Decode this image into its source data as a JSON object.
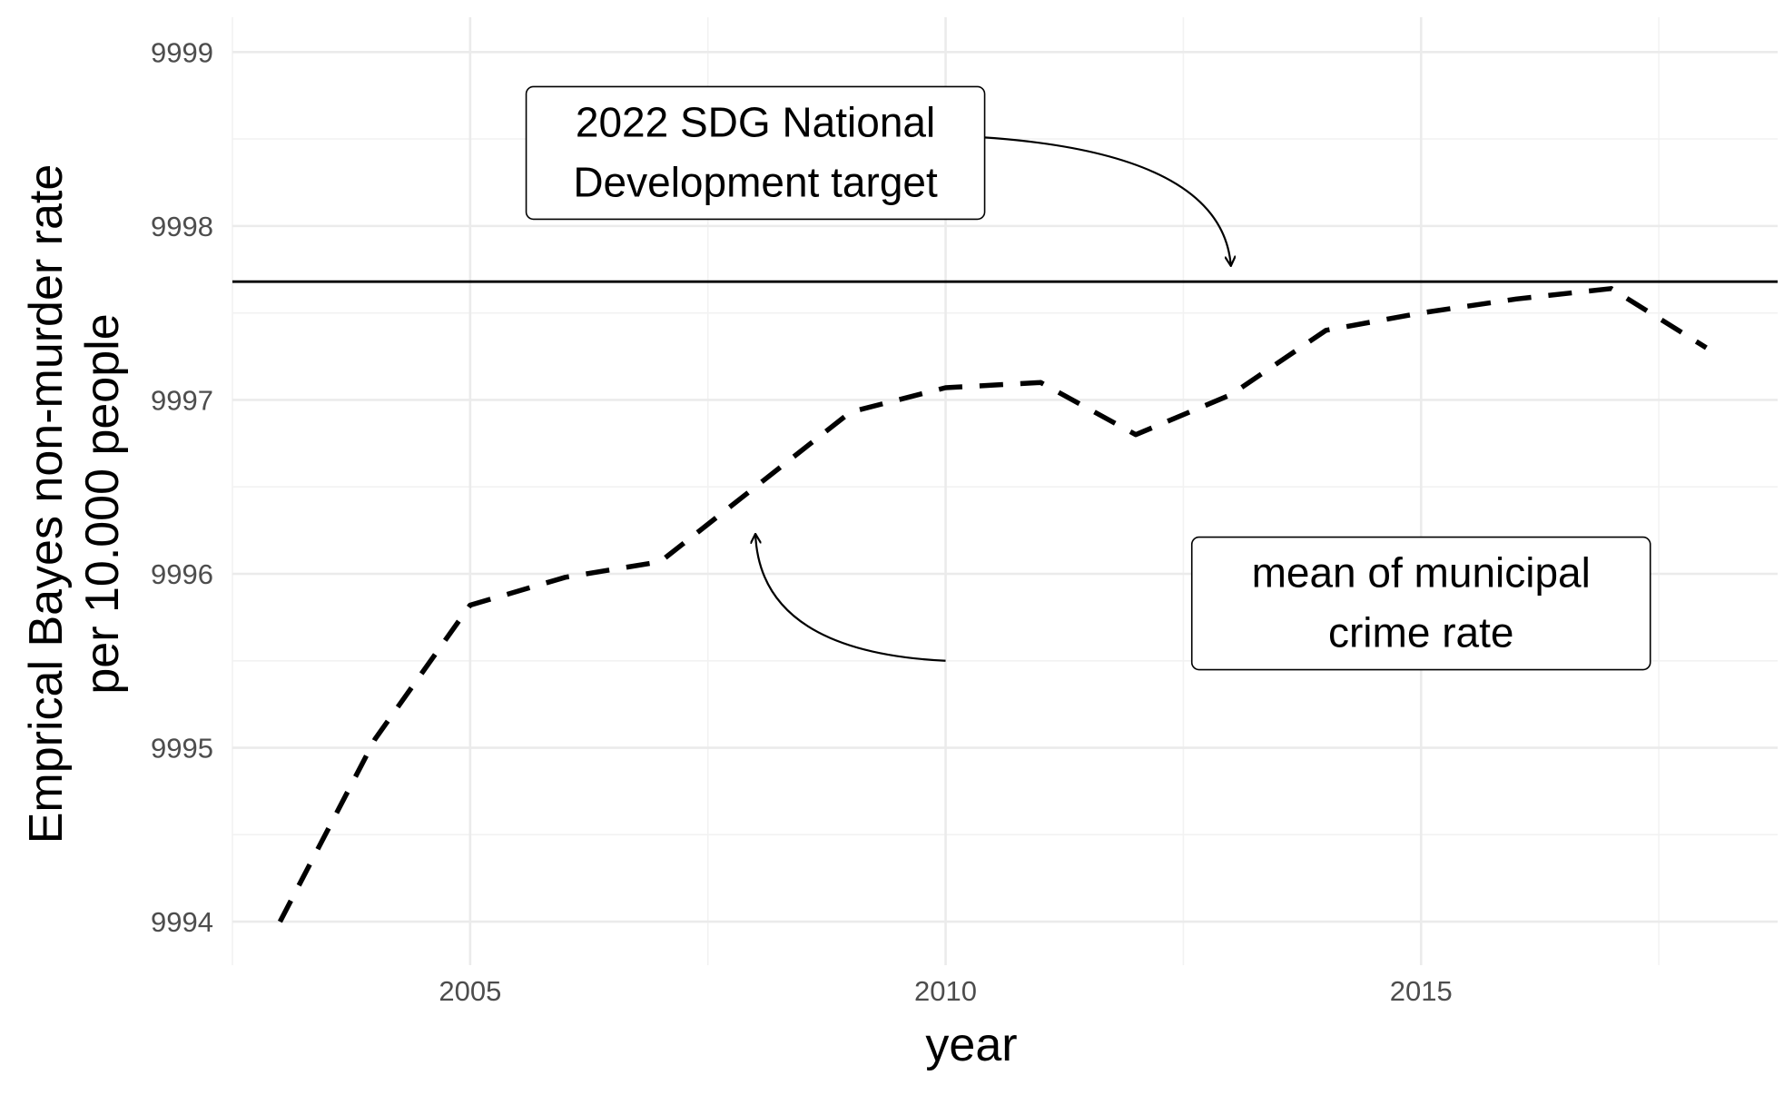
{
  "chart_data": {
    "type": "line",
    "title": "",
    "xlabel": "year",
    "ylabel_lines": [
      "Emprical Bayes non-murder rate",
      "per 10.000 people"
    ],
    "xlim": [
      2002.5,
      2018.75
    ],
    "ylim": [
      9993.75,
      9999.2
    ],
    "x_ticks": [
      2005,
      2010,
      2015
    ],
    "y_ticks": [
      9994,
      9995,
      9996,
      9997,
      9998,
      9999
    ],
    "x_minor_ticks": [
      2002.5,
      2007.5,
      2012.5,
      2017.5
    ],
    "y_minor_ticks": [
      9994.5,
      9995.5,
      9996.5,
      9997.5,
      9998.5
    ],
    "grid": true,
    "series": [
      {
        "line_style": "dashed",
        "color": "#000000",
        "x": [
          2003,
          2004,
          2005,
          2006,
          2007,
          2008,
          2009,
          2010,
          2011,
          2012,
          2013,
          2014,
          2015,
          2016,
          2017,
          2018
        ],
        "y": [
          9994.0,
          9995.05,
          9995.82,
          9995.98,
          9996.07,
          9996.5,
          9996.93,
          9997.07,
          9997.1,
          9996.8,
          9997.03,
          9997.4,
          9997.5,
          9997.58,
          9997.64,
          9997.3
        ]
      }
    ],
    "reference_lines": [
      {
        "orientation": "horizontal",
        "y": 9997.68,
        "color": "#000000"
      }
    ],
    "annotations": [
      {
        "text_lines": [
          "2022 SDG National",
          "Development target"
        ],
        "box_center": [
          2008.0,
          9998.42
        ],
        "arrow_from": [
          2010.0,
          9998.52
        ],
        "arrow_to": [
          2013.0,
          9997.77
        ]
      },
      {
        "text_lines": [
          "mean of municipal",
          "crime rate"
        ],
        "box_center": [
          2015.0,
          9995.83
        ],
        "arrow_from": [
          2010.0,
          9995.5
        ],
        "arrow_to": [
          2008.0,
          9996.23
        ]
      }
    ]
  }
}
